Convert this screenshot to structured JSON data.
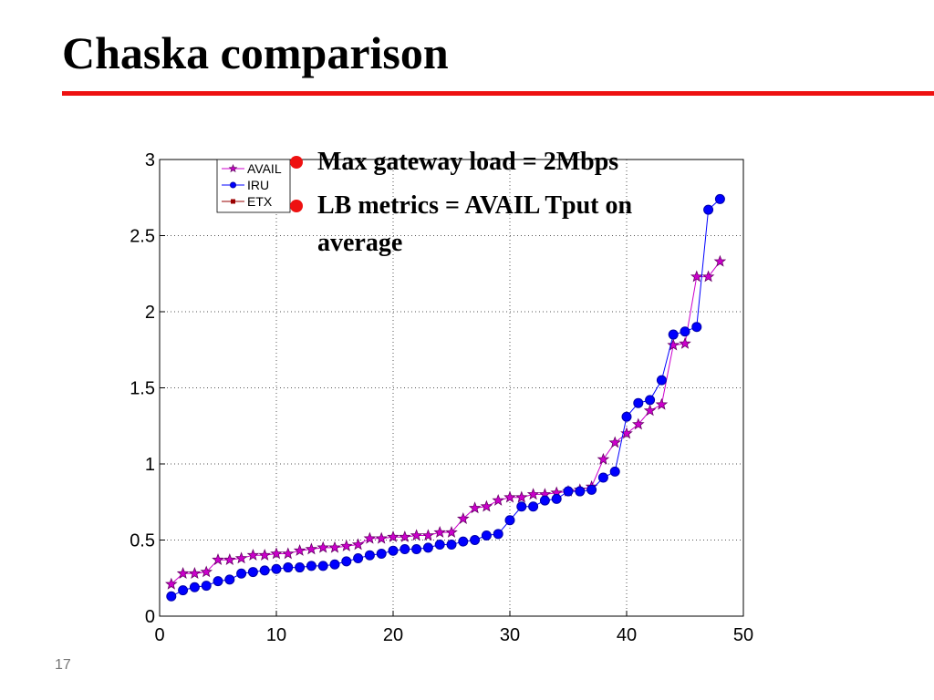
{
  "slide_title": "Chaska comparison",
  "bullets": [
    "Max gateway load = 2Mbps",
    "LB metrics = AVAIL Tput on average"
  ],
  "page_number": "17",
  "chart_data": {
    "type": "line",
    "x": [
      1,
      2,
      3,
      4,
      5,
      6,
      7,
      8,
      9,
      10,
      11,
      12,
      13,
      14,
      15,
      16,
      17,
      18,
      19,
      20,
      21,
      22,
      23,
      24,
      25,
      26,
      27,
      28,
      29,
      30,
      31,
      32,
      33,
      34,
      35,
      36,
      37,
      38,
      39,
      40,
      41,
      42,
      43,
      44,
      45,
      46,
      47,
      48
    ],
    "series": [
      {
        "name": "AVAIL",
        "color": "#cc00cc",
        "marker": "star",
        "values": [
          0.21,
          0.28,
          0.28,
          0.29,
          0.37,
          0.37,
          0.38,
          0.4,
          0.4,
          0.41,
          0.41,
          0.43,
          0.44,
          0.45,
          0.45,
          0.46,
          0.47,
          0.51,
          0.51,
          0.52,
          0.52,
          0.53,
          0.53,
          0.55,
          0.55,
          0.64,
          0.71,
          0.72,
          0.76,
          0.78,
          0.78,
          0.8,
          0.8,
          0.81,
          0.82,
          0.83,
          0.85,
          1.03,
          1.14,
          1.2,
          1.26,
          1.35,
          1.39,
          1.78,
          1.79,
          2.23,
          2.23,
          2.33
        ]
      },
      {
        "name": "IRU",
        "color": "#0000ff",
        "marker": "circle",
        "values": [
          0.13,
          0.17,
          0.19,
          0.2,
          0.23,
          0.24,
          0.28,
          0.29,
          0.3,
          0.31,
          0.32,
          0.32,
          0.33,
          0.33,
          0.34,
          0.36,
          0.38,
          0.4,
          0.41,
          0.43,
          0.44,
          0.44,
          0.45,
          0.47,
          0.47,
          0.49,
          0.5,
          0.53,
          0.54,
          0.63,
          0.72,
          0.72,
          0.76,
          0.77,
          0.82,
          0.82,
          0.83,
          0.91,
          0.95,
          1.31,
          1.4,
          1.42,
          1.55,
          1.85,
          1.87,
          1.9,
          2.67,
          2.74
        ]
      },
      {
        "name": "ETX",
        "color": "#990000",
        "marker": "square",
        "values": [
          null,
          null,
          null,
          null,
          null,
          null,
          null,
          null,
          null,
          null,
          null,
          null,
          null,
          null,
          null,
          null,
          null,
          null,
          null,
          null,
          null,
          null,
          null,
          null,
          null,
          null,
          null,
          null,
          null,
          null,
          null,
          null,
          null,
          null,
          null,
          null,
          null,
          null,
          null,
          null,
          null,
          null,
          null,
          null,
          null,
          null,
          null,
          null
        ]
      }
    ],
    "xlim": [
      0,
      50
    ],
    "xticks": [
      0,
      10,
      20,
      30,
      40,
      50
    ],
    "ylim": [
      0,
      3
    ],
    "yticks": [
      0,
      0.5,
      1,
      1.5,
      2,
      2.5,
      3
    ],
    "grid": true,
    "legend": "upper left"
  }
}
